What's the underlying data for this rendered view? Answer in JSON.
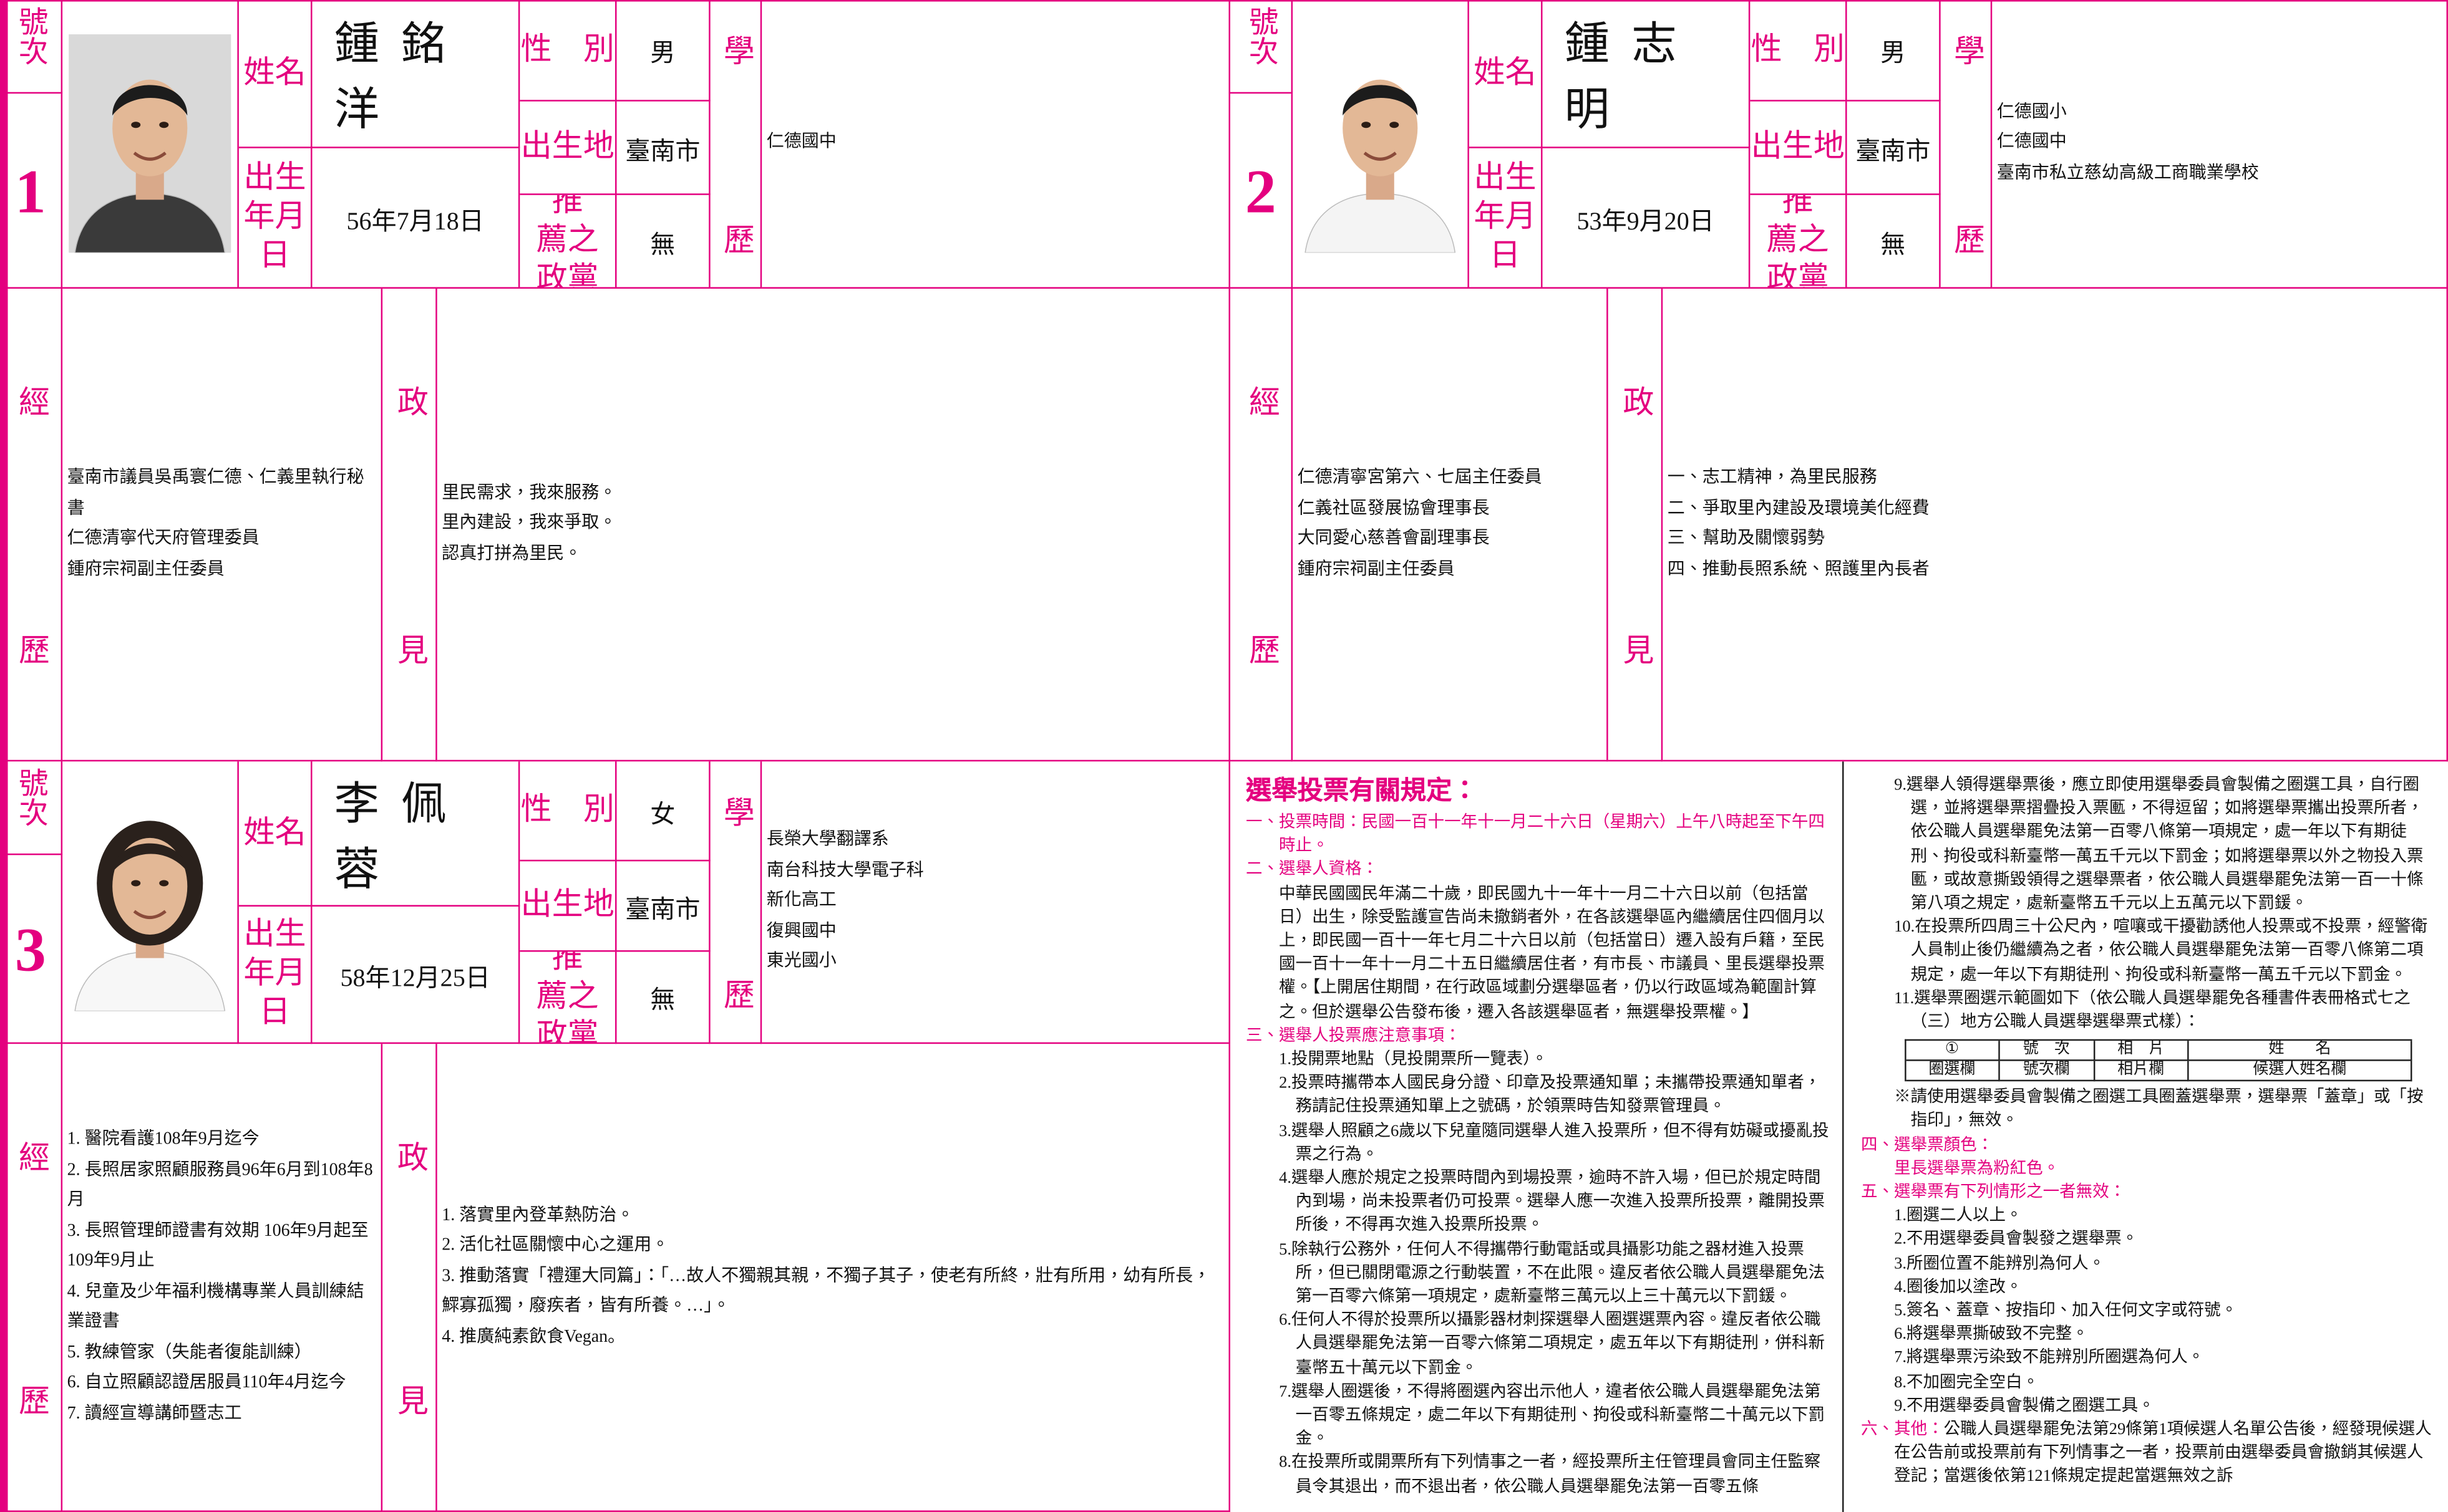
{
  "labels": {
    "number": "號次",
    "name": "姓名",
    "gender": "性　別",
    "birthplace": "出生地",
    "birthdate": "出生年月日",
    "party": "推　薦之政黨",
    "education": "學歷",
    "experience": "經歷",
    "platform": "政見"
  },
  "candidates": [
    {
      "number": 1,
      "name": "鍾銘洋",
      "gender": "男",
      "birthplace": "臺南市",
      "birthdate": "56年7月18日",
      "party": "無",
      "education": [
        "仁德國中"
      ],
      "experience": [
        "臺南市議員吳禹寰仁德、仁義里執行秘書",
        "仁德清寧代天府管理委員",
        "鍾府宗祠副主任委員"
      ],
      "platform": [
        "里民需求，我來服務。",
        "里內建設，我來爭取。",
        "認真打拼為里民。"
      ]
    },
    {
      "number": 2,
      "name": "鍾志明",
      "gender": "男",
      "birthplace": "臺南市",
      "birthdate": "53年9月20日",
      "party": "無",
      "education": [
        "仁德國小",
        "仁德國中",
        "臺南市私立慈幼高級工商職業學校"
      ],
      "experience": [
        "仁德清寧宮第六、七屆主任委員",
        "仁義社區發展協會理事長",
        "大同愛心慈善會副理事長",
        "鍾府宗祠副主任委員"
      ],
      "platform": [
        "一、志工精神，為里民服務",
        "二、爭取里內建設及環境美化經費",
        "三、幫助及關懷弱勢",
        "四、推動長照系統、照護里內長者"
      ]
    },
    {
      "number": 3,
      "name": "李佩蓉",
      "gender": "女",
      "birthplace": "臺南市",
      "birthdate": "58年12月25日",
      "party": "無",
      "education": [
        "長榮大學翻譯系",
        "南台科技大學電子科",
        "新化高工",
        "復興國中",
        "東光國小"
      ],
      "experience": [
        "1. 醫院看護108年9月迄今",
        "2. 長照居家照顧服務員96年6月到108年8月",
        "3. 長照管理師證書有效期 106年9月起至109年9月止",
        "4. 兒童及少年福利機構專業人員訓練結業證書",
        "5. 教練管家（失能者復能訓練）",
        "6. 自立照顧認證居服員110年4月迄今",
        "7. 讀經宣導講師暨志工"
      ],
      "platform": [
        "1. 落實里內登革熱防治。",
        "2. 活化社區關懷中心之運用。",
        "3. 推動落實「禮運大同篇」：「…故人不獨親其親，不獨子其子，使老有所終，壯有所用，幼有所長，鰥寡孤獨，廢疾者，皆有所養。…」。",
        "4. 推廣純素飲食Vegan。"
      ]
    }
  ],
  "rules": {
    "title": "選舉投票有關規定：",
    "columns": [
      [
        {
          "heading": "一、投票時間：民國一百十一年十一月二十六日（星期六）上午八時起至下午四時止。"
        },
        {
          "heading": "二、選舉人資格：",
          "paragraphs": [
            "中華民國國民年滿二十歲，即民國九十一年十一月二十六日以前（包括當日）出生，除受監護宣告尚未撤銷者外，在各該選舉區內繼續居住四個月以上，即民國一百十一年七月二十六日以前（包括當日）遷入設有戶籍，至民國一百十一年十一月二十五日繼續居住者，有市長、市議員、里長選舉投票權。【上開居住期間，在行政區域劃分選舉區者，仍以行政區域為範圍計算之。但於選舉公告發布後，遷入各該選舉區者，無選舉投票權。】"
          ]
        },
        {
          "heading": "三、選舉人投票應注意事項：",
          "items": [
            "1.投開票地點（見投開票所一覽表）。",
            "2.投票時攜帶本人國民身分證、印章及投票通知單；未攜帶投票通知單者，務請記住投票通知單上之號碼，於領票時告知發票管理員。",
            "3.選舉人照顧之6歲以下兒童隨同選舉人進入投票所，但不得有妨礙或擾亂投票之行為。",
            "4.選舉人應於規定之投票時間內到場投票，逾時不許入場，但已於規定時間內到場，尚未投票者仍可投票。選舉人應一次進入投票所投票，離開投票所後，不得再次進入投票所投票。",
            "5.除執行公務外，任何人不得攜帶行動電話或具攝影功能之器材進入投票所，但已關閉電源之行動裝置，不在此限。違反者依公職人員選舉罷免法第一百零六條第一項規定，處新臺幣三萬元以上三十萬元以下罰鍰。",
            "6.任何人不得於投票所以攝影器材刺探選舉人圈選選票內容。違反者依公職人員選舉罷免法第一百零六條第二項規定，處五年以下有期徒刑，併科新臺幣五十萬元以下罰金。",
            "7.選舉人圈選後，不得將圈選內容出示他人，違者依公職人員選舉罷免法第一百零五條規定，處二年以下有期徒刑、拘役或科新臺幣二十萬元以下罰金。",
            "8.在投票所或開票所有下列情事之一者，經投票所主任管理員會同主任監察員令其退出，而不退出者，依公職人員選舉罷免法第一百零五條"
          ]
        }
      ],
      [
        {
          "items": [
            "9.選舉人領得選舉票後，應立即使用選舉委員會製備之圈選工具，自行圈選，並將選舉票摺疊投入票匭，不得逗留；如將選舉票攜出投票所者，依公職人員選舉罷免法第一百零八條第一項規定，處一年以下有期徒刑、拘役或科新臺幣一萬五千元以下罰金；如將選舉票以外之物投入票匭，或故意撕毀領得之選舉票者，依公職人員選舉罷免法第一百一十條第八項之規定，處新臺幣五千元以上五萬元以下罰鍰。",
            "10.在投票所四周三十公尺內，喧嚷或干擾勸誘他人投票或不投票，經警衛人員制止後仍繼續為之者，依公職人員選舉罷免法第一百零八條第二項規定，處一年以下有期徒刑、拘役或科新臺幣一萬五千元以下罰金。",
            "11.選舉票圈選示範圖如下（依公職人員選舉罷免各種書件表冊格式七之（三）地方公職人員選舉選舉票式樣）："
          ],
          "table": [
            [
              "①",
              "號　次",
              "相　片",
              "姓　　名"
            ],
            [
              "圈選欄",
              "號次欄",
              "相片欄",
              "候選人姓名欄"
            ]
          ],
          "note": "※請使用選舉委員會製備之圈選工具圈蓋選舉票，選舉票「蓋章」或「按指印」，無效。"
        },
        {
          "heading": "四、選舉票顏色：",
          "subheading": "里長選舉票為粉紅色。"
        },
        {
          "heading": "五、選舉票有下列情形之一者無效：",
          "items": [
            "1.圈選二人以上。",
            "2.不用選舉委員會製發之選舉票。",
            "3.所圈位置不能辨別為何人。",
            "4.圈後加以塗改。",
            "5.簽名、蓋章、按指印、加入任何文字或符號。",
            "6.將選舉票撕破致不完整。",
            "7.將選舉票污染致不能辨別所圈選為何人。",
            "8.不加圈完全空白。",
            "9.不用選舉委員會製備之圈選工具。"
          ]
        },
        {
          "heading": "六、其他：",
          "text": "公職人員選舉罷免法第29條第1項候選人名單公告後，經發現候選人在公告前或投票前有下列情事之一者，投票前由選舉委員會撤銷其候選人登記；當選後依第121條規定提起當選無效之訴"
        }
      ]
    ]
  }
}
